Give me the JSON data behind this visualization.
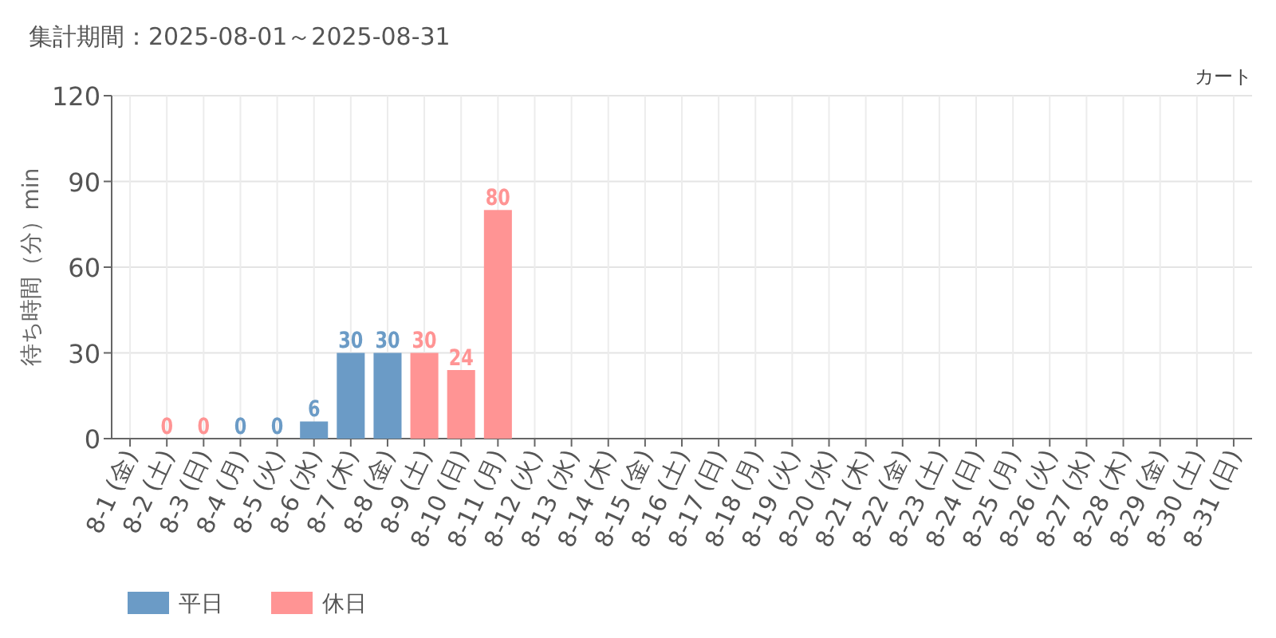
{
  "chart_data": {
    "type": "bar",
    "title": "集計期間：2025-08-01～2025-08-31",
    "subtitle": "カート",
    "ylabel": "待ち時間（分）min",
    "categories": [
      "8-1 (金)",
      "8-2 (土)",
      "8-3 (日)",
      "8-4 (月)",
      "8-5 (火)",
      "8-6 (水)",
      "8-7 (木)",
      "8-8 (金)",
      "8-9 (土)",
      "8-10 (日)",
      "8-11 (月)",
      "8-12 (火)",
      "8-13 (水)",
      "8-14 (木)",
      "8-15 (金)",
      "8-16 (土)",
      "8-17 (日)",
      "8-18 (月)",
      "8-19 (火)",
      "8-20 (水)",
      "8-21 (木)",
      "8-22 (金)",
      "8-23 (土)",
      "8-24 (日)",
      "8-25 (月)",
      "8-26 (火)",
      "8-27 (水)",
      "8-28 (木)",
      "8-29 (金)",
      "8-30 (土)",
      "8-31 (日)"
    ],
    "series": [
      {
        "name": "平日",
        "color": "#6b9bc6",
        "values": [
          null,
          null,
          null,
          0,
          0,
          6,
          30,
          30,
          null,
          null,
          null,
          null,
          null,
          null,
          null,
          null,
          null,
          null,
          null,
          null,
          null,
          null,
          null,
          null,
          null,
          null,
          null,
          null,
          null,
          null,
          null
        ]
      },
      {
        "name": "休日",
        "color": "#ff9494",
        "values": [
          null,
          0,
          0,
          null,
          null,
          null,
          null,
          null,
          30,
          24,
          80,
          null,
          null,
          null,
          null,
          null,
          null,
          null,
          null,
          null,
          null,
          null,
          null,
          null,
          null,
          null,
          null,
          null,
          null,
          null,
          null
        ]
      }
    ],
    "ylim": [
      0,
      120
    ],
    "yticks": [
      0,
      30,
      60,
      90,
      120
    ],
    "grid": true,
    "data_labels": true,
    "legend": "bottom left"
  }
}
